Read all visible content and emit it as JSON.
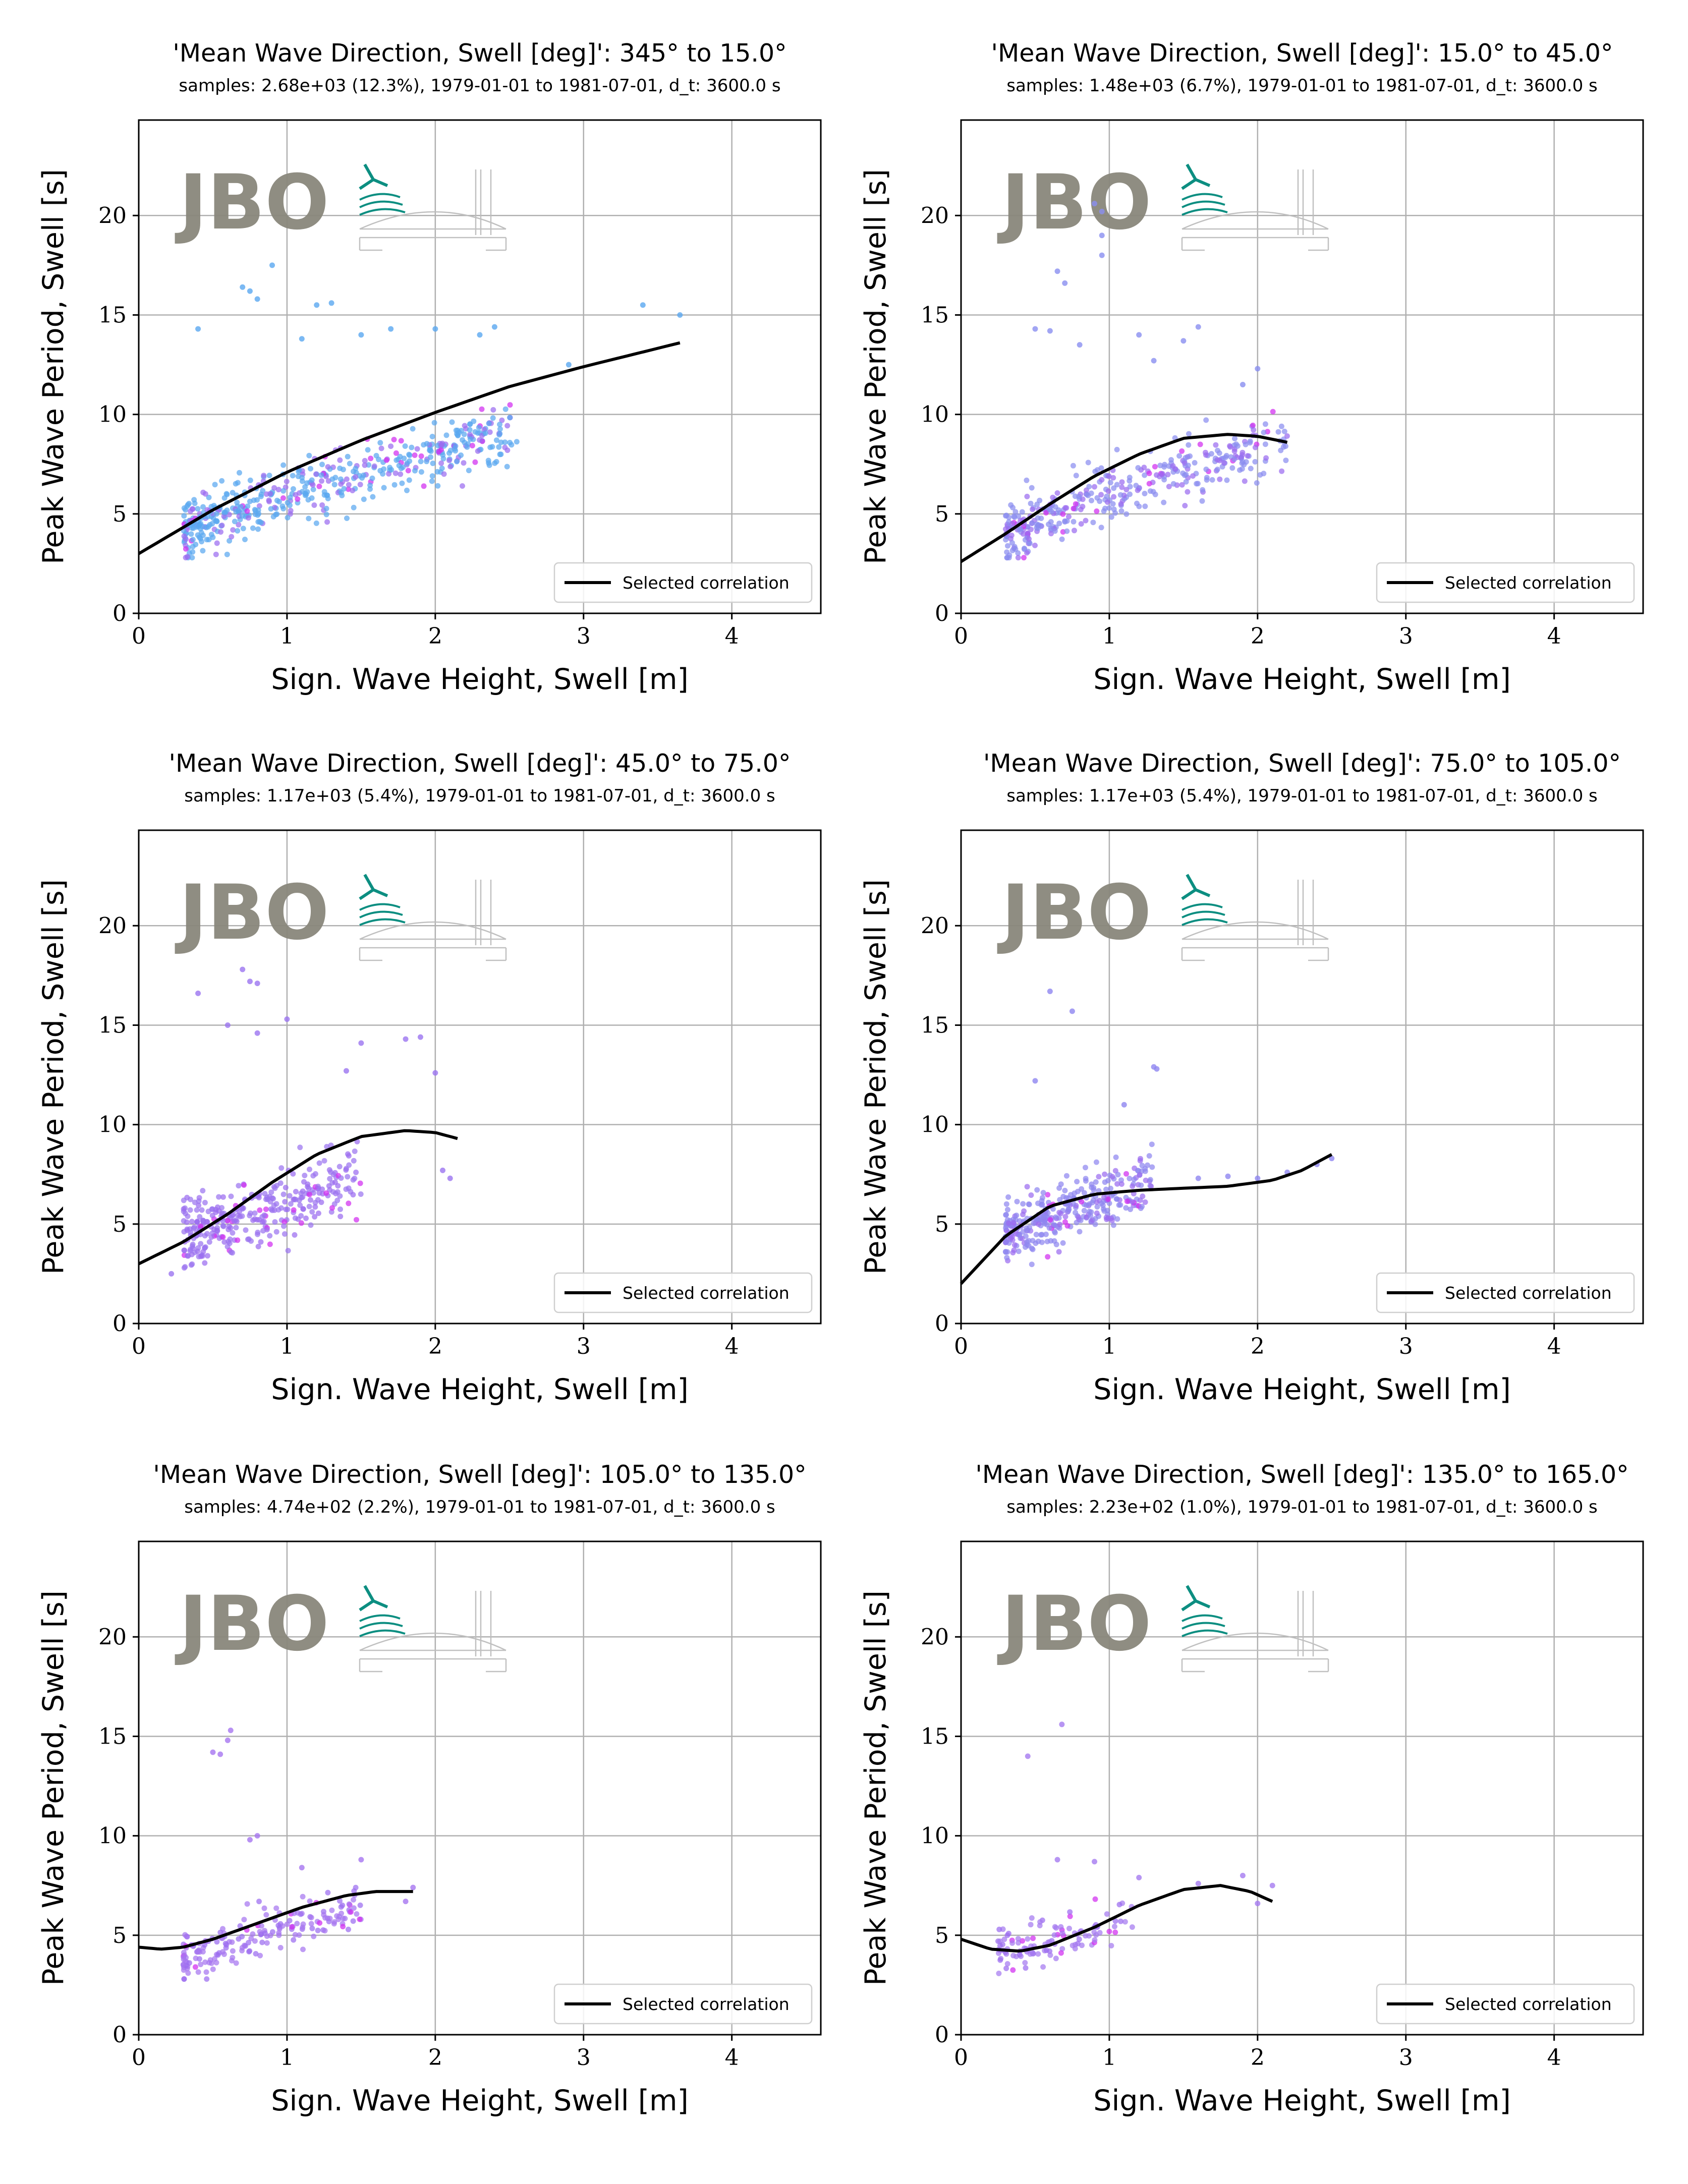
{
  "figure": {
    "colors": {
      "grid": "#b0b0b0",
      "fit_line": "#000000",
      "logo_gray": "#8a877c",
      "logo_teal": "#00897b",
      "dot_blue": "#5aa8f0",
      "dot_purple": "#9b6cf0",
      "dot_magenta": "#d12cf0",
      "dot_cyan": "#20d8f0"
    },
    "watermark": {
      "text": "JBO",
      "icon": "wind-turbine-wave-bridge-logo"
    }
  },
  "chart_data": [
    {
      "type": "scatter",
      "title": "'Mean Wave Direction, Swell [deg]': 345° to 15.0°",
      "subtitle": "samples: 2.68e+03 (12.3%), 1979-01-01 to 1981-07-01, d_t: 3600.0 s",
      "xlabel": "Sign. Wave Height, Swell [m]",
      "ylabel": "Peak Wave Period, Swell [s]",
      "xlim": [
        0,
        4.6
      ],
      "ylim": [
        0,
        24.8
      ],
      "xticks": [
        0,
        1,
        2,
        3,
        4
      ],
      "yticks": [
        0,
        5,
        10,
        15,
        20
      ],
      "grid": true,
      "legend": "lower-right",
      "legend_label": "Selected correlation",
      "dot_color": "#5aa8f0",
      "cloud": {
        "n": 520,
        "hs_range": [
          0.3,
          2.55
        ],
        "tp_at_hs_min": 4.2,
        "tp_slope": 2.7,
        "tp_curve": -0.25,
        "tp_spread": 1.4
      },
      "outliers": [
        [
          0.75,
          16.2
        ],
        [
          0.8,
          15.8
        ],
        [
          0.7,
          16.4
        ],
        [
          0.9,
          17.5
        ],
        [
          1.3,
          15.6
        ],
        [
          1.2,
          15.5
        ],
        [
          1.5,
          14.0
        ],
        [
          1.7,
          14.3
        ],
        [
          2.0,
          14.3
        ],
        [
          2.3,
          14.0
        ],
        [
          2.4,
          14.4
        ],
        [
          3.4,
          15.5
        ],
        [
          3.65,
          15.0
        ],
        [
          2.9,
          12.5
        ],
        [
          1.1,
          13.8
        ],
        [
          0.4,
          14.3
        ]
      ],
      "fit": {
        "x": [
          0.0,
          0.5,
          1.0,
          1.5,
          2.0,
          2.5,
          3.0,
          3.65
        ],
        "y": [
          3.0,
          5.2,
          7.1,
          8.7,
          10.1,
          11.4,
          12.4,
          13.6
        ]
      }
    },
    {
      "type": "scatter",
      "title": "'Mean Wave Direction, Swell [deg]': 15.0° to 45.0°",
      "subtitle": "samples: 1.48e+03 (6.7%), 1979-01-01 to 1981-07-01, d_t: 3600.0 s",
      "xlabel": "Sign. Wave Height, Swell [m]",
      "ylabel": "Peak Wave Period, Swell [s]",
      "xlim": [
        0,
        4.6
      ],
      "ylim": [
        0,
        24.8
      ],
      "xticks": [
        0,
        1,
        2,
        3,
        4
      ],
      "yticks": [
        0,
        5,
        10,
        15,
        20
      ],
      "grid": true,
      "legend": "lower-right",
      "legend_label": "Selected correlation",
      "dot_color": "#8a8ef0",
      "cloud": {
        "n": 380,
        "hs_range": [
          0.3,
          2.2
        ],
        "tp_at_hs_min": 4.0,
        "tp_slope": 3.0,
        "tp_curve": -0.3,
        "tp_spread": 1.3
      },
      "outliers": [
        [
          0.95,
          20.2
        ],
        [
          0.95,
          19.0
        ],
        [
          0.95,
          18.0
        ],
        [
          0.9,
          20.6
        ],
        [
          0.65,
          17.2
        ],
        [
          0.7,
          16.6
        ],
        [
          0.5,
          14.3
        ],
        [
          0.6,
          14.2
        ],
        [
          0.8,
          13.5
        ],
        [
          1.2,
          14.0
        ],
        [
          1.6,
          14.4
        ],
        [
          1.5,
          13.7
        ],
        [
          1.9,
          11.5
        ],
        [
          2.0,
          12.3
        ],
        [
          1.3,
          12.7
        ]
      ],
      "fit": {
        "x": [
          0.0,
          0.3,
          0.6,
          0.9,
          1.2,
          1.5,
          1.8,
          2.0,
          2.2
        ],
        "y": [
          2.6,
          4.0,
          5.5,
          6.9,
          8.0,
          8.8,
          9.0,
          8.9,
          8.6
        ]
      }
    },
    {
      "type": "scatter",
      "title": "'Mean Wave Direction, Swell [deg]': 45.0° to 75.0°",
      "subtitle": "samples: 1.17e+03 (5.4%), 1979-01-01 to 1981-07-01, d_t: 3600.0 s",
      "xlabel": "Sign. Wave Height, Swell [m]",
      "ylabel": "Peak Wave Period, Swell [s]",
      "xlim": [
        0,
        4.6
      ],
      "ylim": [
        0,
        24.8
      ],
      "xticks": [
        0,
        1,
        2,
        3,
        4
      ],
      "yticks": [
        0,
        5,
        10,
        15,
        20
      ],
      "grid": true,
      "legend": "lower-right",
      "legend_label": "Selected correlation",
      "dot_color": "#9b74f0",
      "cloud": {
        "n": 330,
        "hs_range": [
          0.3,
          1.5
        ],
        "tp_at_hs_min": 4.3,
        "tp_slope": 2.6,
        "tp_curve": 0.0,
        "tp_spread": 1.5
      },
      "outliers": [
        [
          0.7,
          17.8
        ],
        [
          0.8,
          17.1
        ],
        [
          0.75,
          17.2
        ],
        [
          0.4,
          16.6
        ],
        [
          0.6,
          15.0
        ],
        [
          0.8,
          14.6
        ],
        [
          1.0,
          15.3
        ],
        [
          1.5,
          14.1
        ],
        [
          1.8,
          14.3
        ],
        [
          1.9,
          14.4
        ],
        [
          2.0,
          12.6
        ],
        [
          2.1,
          7.3
        ],
        [
          2.05,
          7.7
        ],
        [
          1.4,
          12.7
        ],
        [
          0.22,
          2.5
        ]
      ],
      "fit": {
        "x": [
          0.0,
          0.3,
          0.6,
          0.9,
          1.2,
          1.5,
          1.8,
          2.0,
          2.15
        ],
        "y": [
          3.0,
          4.1,
          5.5,
          7.1,
          8.5,
          9.4,
          9.7,
          9.6,
          9.3
        ]
      }
    },
    {
      "type": "scatter",
      "title": "'Mean Wave Direction, Swell [deg]': 75.0° to 105.0°",
      "subtitle": "samples: 1.17e+03 (5.4%), 1979-01-01 to 1981-07-01, d_t: 3600.0 s",
      "xlabel": "Sign. Wave Height, Swell [m]",
      "ylabel": "Peak Wave Period, Swell [s]",
      "xlim": [
        0,
        4.6
      ],
      "ylim": [
        0,
        24.8
      ],
      "xticks": [
        0,
        1,
        2,
        3,
        4
      ],
      "yticks": [
        0,
        5,
        10,
        15,
        20
      ],
      "grid": true,
      "legend": "lower-right",
      "legend_label": "Selected correlation",
      "dot_color": "#8f86f0",
      "cloud": {
        "n": 340,
        "hs_range": [
          0.3,
          1.3
        ],
        "tp_at_hs_min": 4.5,
        "tp_slope": 2.8,
        "tp_curve": 0.0,
        "tp_spread": 1.4
      },
      "outliers": [
        [
          0.6,
          16.7
        ],
        [
          0.75,
          15.7
        ],
        [
          0.5,
          12.2
        ],
        [
          1.3,
          12.9
        ],
        [
          1.32,
          12.8
        ],
        [
          1.6,
          7.3
        ],
        [
          1.8,
          7.4
        ],
        [
          2.0,
          7.3
        ],
        [
          2.2,
          7.6
        ],
        [
          2.5,
          8.3
        ],
        [
          2.4,
          8.0
        ],
        [
          1.1,
          11.0
        ]
      ],
      "fit": {
        "x": [
          0.0,
          0.3,
          0.6,
          0.9,
          1.2,
          1.5,
          1.8,
          2.1,
          2.3,
          2.5
        ],
        "y": [
          2.0,
          4.4,
          5.9,
          6.5,
          6.7,
          6.8,
          6.9,
          7.2,
          7.7,
          8.5
        ]
      }
    },
    {
      "type": "scatter",
      "title": "'Mean Wave Direction, Swell [deg]': 105.0° to 135.0°",
      "subtitle": "samples: 4.74e+02 (2.2%), 1979-01-01 to 1981-07-01, d_t: 3600.0 s",
      "xlabel": "Sign. Wave Height, Swell [m]",
      "ylabel": "Peak Wave Period, Swell [s]",
      "xlim": [
        0,
        4.6
      ],
      "ylim": [
        0,
        24.8
      ],
      "xticks": [
        0,
        1,
        2,
        3,
        4
      ],
      "yticks": [
        0,
        5,
        10,
        15,
        20
      ],
      "grid": true,
      "legend": "lower-right",
      "legend_label": "Selected correlation",
      "dot_color": "#a676f0",
      "cloud": {
        "n": 190,
        "hs_range": [
          0.3,
          1.5
        ],
        "tp_at_hs_min": 4.0,
        "tp_slope": 1.9,
        "tp_curve": 0.0,
        "tp_spread": 1.1
      },
      "outliers": [
        [
          0.62,
          15.3
        ],
        [
          0.6,
          14.8
        ],
        [
          0.5,
          14.2
        ],
        [
          0.55,
          14.1
        ],
        [
          0.8,
          10.0
        ],
        [
          0.75,
          9.8
        ],
        [
          1.1,
          8.4
        ],
        [
          1.5,
          8.8
        ],
        [
          1.8,
          6.7
        ],
        [
          1.85,
          7.4
        ]
      ],
      "fit": {
        "x": [
          0.0,
          0.15,
          0.3,
          0.5,
          0.8,
          1.1,
          1.4,
          1.6,
          1.85
        ],
        "y": [
          4.4,
          4.3,
          4.4,
          4.8,
          5.6,
          6.4,
          7.0,
          7.2,
          7.2
        ]
      }
    },
    {
      "type": "scatter",
      "title": "'Mean Wave Direction, Swell [deg]': 135.0° to 165.0°",
      "subtitle": "samples: 2.23e+02 (1.0%), 1979-01-01 to 1981-07-01, d_t: 3600.0 s",
      "xlabel": "Sign. Wave Height, Swell [m]",
      "ylabel": "Peak Wave Period, Swell [s]",
      "xlim": [
        0,
        4.6
      ],
      "ylim": [
        0,
        24.8
      ],
      "xticks": [
        0,
        1,
        2,
        3,
        4
      ],
      "yticks": [
        0,
        5,
        10,
        15,
        20
      ],
      "grid": true,
      "legend": "lower-right",
      "legend_label": "Selected correlation",
      "dot_color": "#a57af0",
      "cloud": {
        "n": 110,
        "hs_range": [
          0.25,
          1.2
        ],
        "tp_at_hs_min": 4.2,
        "tp_slope": 1.6,
        "tp_curve": 0.0,
        "tp_spread": 1.0
      },
      "outliers": [
        [
          0.68,
          15.6
        ],
        [
          0.45,
          14.0
        ],
        [
          0.65,
          8.8
        ],
        [
          0.9,
          8.7
        ],
        [
          1.2,
          7.9
        ],
        [
          1.6,
          7.6
        ],
        [
          1.9,
          8.0
        ],
        [
          2.1,
          7.5
        ],
        [
          2.0,
          6.6
        ],
        [
          0.25,
          4.7
        ]
      ],
      "fit": {
        "x": [
          0.0,
          0.2,
          0.4,
          0.6,
          0.9,
          1.2,
          1.5,
          1.75,
          1.95,
          2.1
        ],
        "y": [
          4.8,
          4.3,
          4.2,
          4.5,
          5.4,
          6.5,
          7.3,
          7.5,
          7.2,
          6.7
        ]
      }
    }
  ]
}
